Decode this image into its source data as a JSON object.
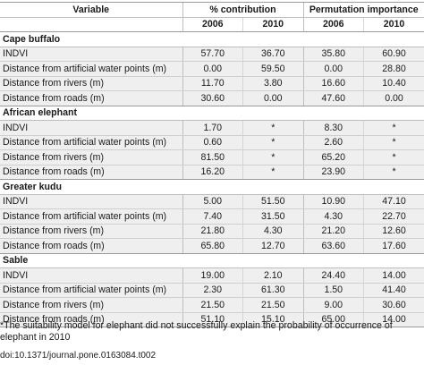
{
  "header": {
    "variable": "Variable",
    "contribution": "% contribution",
    "permutation": "Permutation importance",
    "years": [
      "2006",
      "2010",
      "2006",
      "2010"
    ]
  },
  "groups": [
    {
      "species": "Cape buffalo",
      "rows": [
        {
          "variable": "INDVI",
          "c2006": "57.70",
          "c2010": "36.70",
          "p2006": "35.80",
          "p2010": "60.90"
        },
        {
          "variable": "Distance from artificial water points (m)",
          "c2006": "0.00",
          "c2010": "59.50",
          "p2006": "0.00",
          "p2010": "28.80"
        },
        {
          "variable": "Distance from rivers (m)",
          "c2006": "11.70",
          "c2010": "3.80",
          "p2006": "16.60",
          "p2010": "10.40"
        },
        {
          "variable": "Distance from roads (m)",
          "c2006": "30.60",
          "c2010": "0.00",
          "p2006": "47.60",
          "p2010": "0.00"
        }
      ]
    },
    {
      "species": "African elephant",
      "rows": [
        {
          "variable": "INDVI",
          "c2006": "1.70",
          "c2010": "*",
          "p2006": "8.30",
          "p2010": "*"
        },
        {
          "variable": "Distance from artificial water points (m)",
          "c2006": "0.60",
          "c2010": "*",
          "p2006": "2.60",
          "p2010": "*"
        },
        {
          "variable": "Distance from rivers (m)",
          "c2006": "81.50",
          "c2010": "*",
          "p2006": "65.20",
          "p2010": "*"
        },
        {
          "variable": "Distance from roads (m)",
          "c2006": "16.20",
          "c2010": "*",
          "p2006": "23.90",
          "p2010": "*"
        }
      ]
    },
    {
      "species": "Greater kudu",
      "rows": [
        {
          "variable": "INDVI",
          "c2006": "5.00",
          "c2010": "51.50",
          "p2006": "10.90",
          "p2010": "47.10"
        },
        {
          "variable": "Distance from artificial water points (m)",
          "c2006": "7.40",
          "c2010": "31.50",
          "p2006": "4.30",
          "p2010": "22.70"
        },
        {
          "variable": "Distance from rivers (m)",
          "c2006": "21.80",
          "c2010": "4.30",
          "p2006": "21.20",
          "p2010": "12.60"
        },
        {
          "variable": "Distance from roads (m)",
          "c2006": "65.80",
          "c2010": "12.70",
          "p2006": "63.60",
          "p2010": "17.60"
        }
      ]
    },
    {
      "species": "Sable",
      "rows": [
        {
          "variable": "INDVI",
          "c2006": "19.00",
          "c2010": "2.10",
          "p2006": "24.40",
          "p2010": "14.00"
        },
        {
          "variable": "Distance from artificial water points (m)",
          "c2006": "2.30",
          "c2010": "61.30",
          "p2006": "1.50",
          "p2010": "41.40"
        },
        {
          "variable": "Distance from rivers (m)",
          "c2006": "21.50",
          "c2010": "21.50",
          "p2006": "9.00",
          "p2010": "30.60"
        },
        {
          "variable": "Distance from roads (m)",
          "c2006": "51.10",
          "c2010": "15.10",
          "p2006": "65.00",
          "p2010": "14.00"
        }
      ]
    }
  ],
  "footnote": "*The suitability model for elephant did not successfully explain the probability of occurrence of elephant in 2010",
  "doi": "doi:10.1371/journal.pone.0163084.t002"
}
